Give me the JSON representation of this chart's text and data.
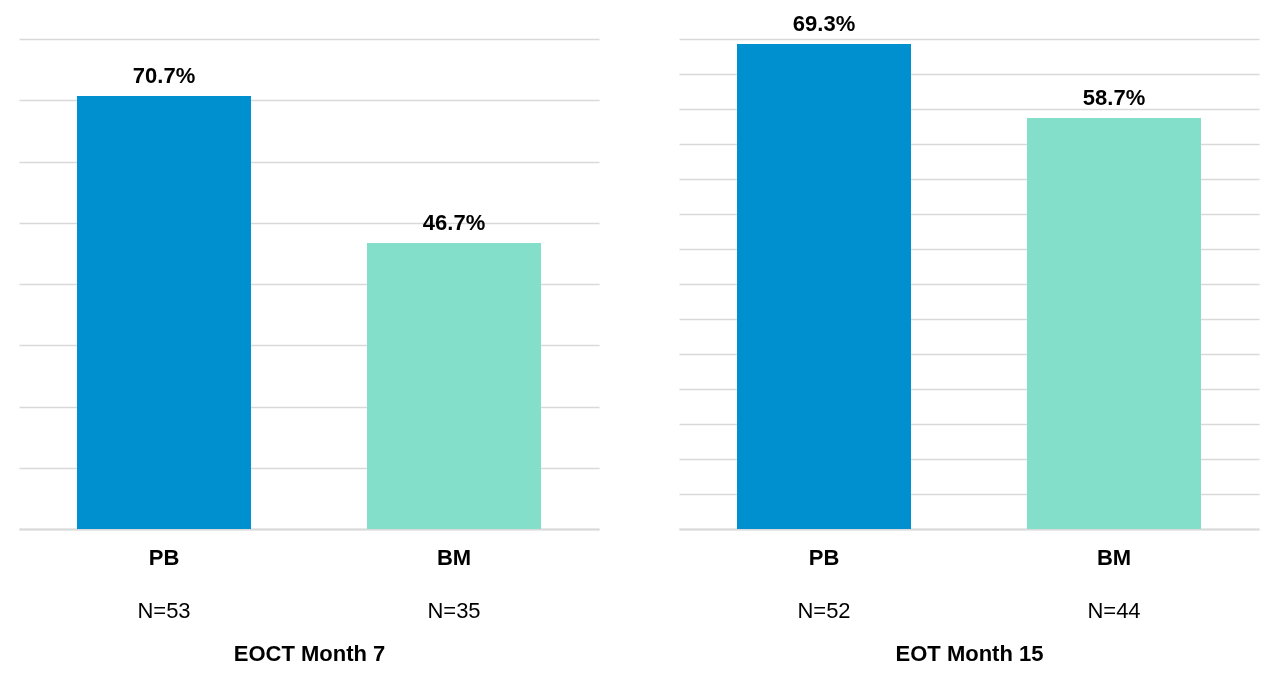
{
  "chart_data": [
    {
      "type": "bar",
      "xlabel": "EOCT Month 7",
      "categories": [
        "PB",
        "BM"
      ],
      "values": [
        70.7,
        46.7
      ],
      "colors": [
        "#0090d0",
        "#84dfca"
      ],
      "value_labels": [
        "70.7%",
        "46.7%"
      ],
      "grid": "y",
      "tick_labels": "x",
      "annotations": [
        "N=53",
        "N=35"
      ]
    },
    {
      "type": "bar",
      "xlabel": "EOT Month 15",
      "categories": [
        "PB",
        "BM"
      ],
      "values": [
        69.3,
        58.7
      ],
      "colors": [
        "#0090d0",
        "#84dfca"
      ],
      "value_labels": [
        "69.3%",
        "58.7%"
      ],
      "grid": "y",
      "tick_labels": "x",
      "annotations": [
        "N=52",
        "N=44"
      ]
    }
  ]
}
